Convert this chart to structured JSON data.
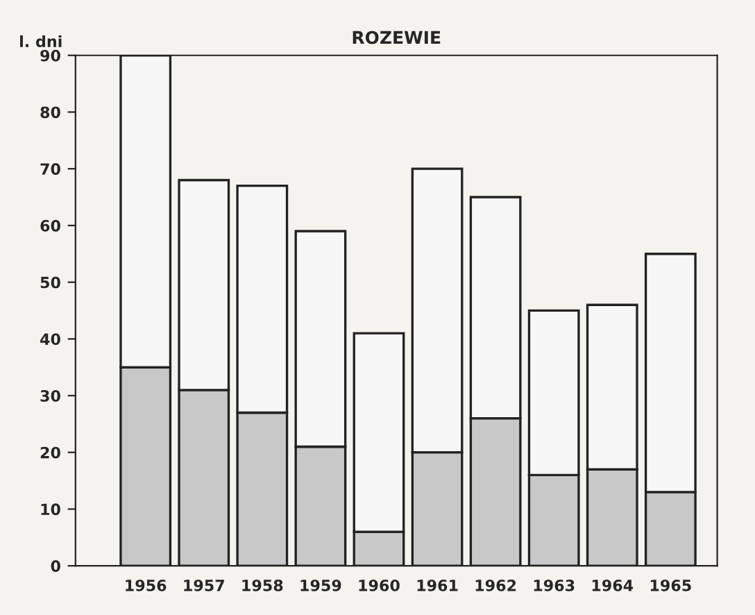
{
  "chart_data": {
    "type": "bar",
    "title": "ROZEWIE",
    "ylabel": "l. dni",
    "stacked": true,
    "categories": [
      "1956",
      "1957",
      "1958",
      "1959",
      "1960",
      "1961",
      "1962",
      "1963",
      "1964",
      "1965"
    ],
    "series": [
      {
        "color": "#c8c8c8",
        "values": [
          35,
          31,
          27,
          21,
          6,
          20,
          26,
          16,
          17,
          13
        ]
      },
      {
        "color": "#f7f7f7",
        "values": [
          55,
          37,
          40,
          38,
          35,
          50,
          39,
          29,
          29,
          42
        ]
      }
    ],
    "ylim": [
      0,
      90
    ],
    "yticks": [
      0,
      10,
      20,
      30,
      40,
      50,
      60,
      70,
      80,
      90
    ],
    "grid": false,
    "legend": false
  }
}
